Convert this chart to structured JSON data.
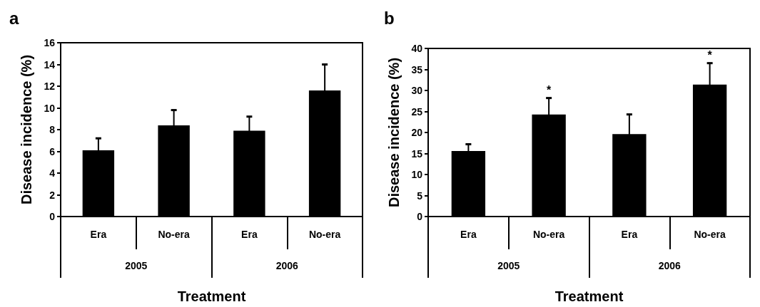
{
  "chart_data": [
    {
      "type": "bar",
      "title": "a",
      "ylabel": "Disease incidence (%)",
      "xlabel": "Treatment",
      "categories": [
        "Era",
        "No-era",
        "Era",
        "No-era"
      ],
      "annotations": [
        "2005",
        "2006"
      ],
      "series": [
        {
          "color": "#000000",
          "values": [
            6.1,
            8.4,
            7.9,
            11.6
          ],
          "errors": [
            1.1,
            1.4,
            1.3,
            2.4
          ]
        }
      ],
      "ylim": [
        0,
        16
      ],
      "yticks": [
        0,
        2,
        4,
        6,
        8,
        10,
        12,
        14,
        16
      ],
      "grid": false
    },
    {
      "type": "bar",
      "title": "b",
      "ylabel": "Disease incidence (%)",
      "xlabel": "Treatment",
      "categories": [
        "Era",
        "No-era",
        "Era",
        "No-era"
      ],
      "annotations": [
        "2005",
        "2006"
      ],
      "series": [
        {
          "color": "#000000",
          "values": [
            15.6,
            24.3,
            19.6,
            31.4
          ],
          "errors": [
            1.6,
            3.9,
            4.7,
            5.1
          ],
          "value_labels": [
            null,
            "*",
            null,
            "*"
          ]
        }
      ],
      "ylim": [
        0,
        40
      ],
      "yticks": [
        0,
        5,
        10,
        15,
        20,
        25,
        30,
        35,
        40
      ],
      "grid": false
    }
  ]
}
